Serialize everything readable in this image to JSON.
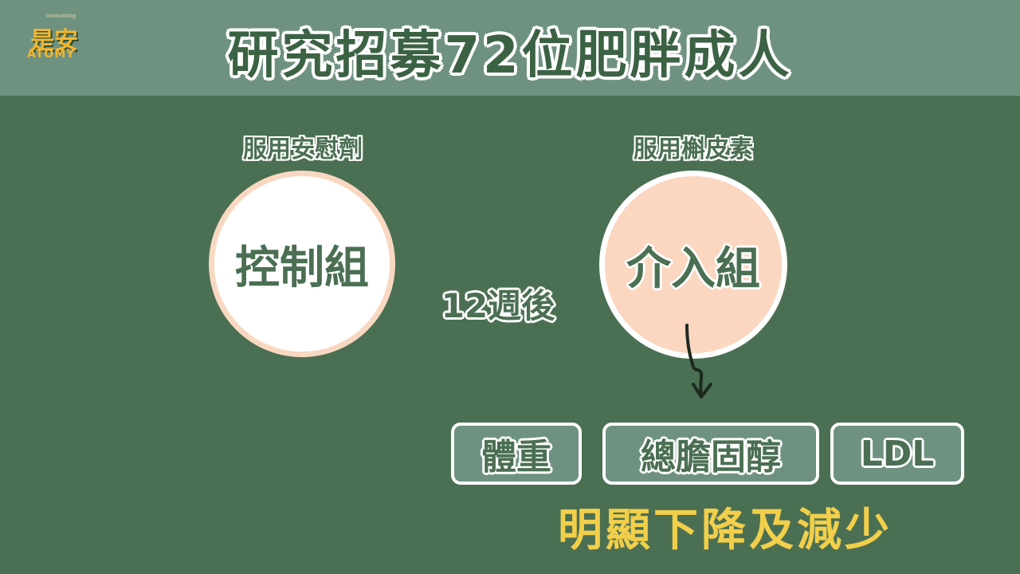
{
  "logo": {
    "top_text": "innovating",
    "cn": "是安",
    "en": "ATOMY"
  },
  "title": "研究招募72位肥胖成人",
  "groups": {
    "control": {
      "caption": "服用安慰劑",
      "label": "控制組",
      "fill": "#ffffff",
      "ring": "#f9d8c2"
    },
    "intervention": {
      "caption": "服用槲皮素",
      "label": "介入組",
      "fill": "#fbd6c0",
      "ring": "#ffffff"
    }
  },
  "duration": "12週後",
  "markers": [
    "體重",
    "總膽固醇",
    "LDL"
  ],
  "result": "明顯下降及減少",
  "colors": {
    "background": "#4b6f53",
    "header": "#6f9280",
    "accent_yellow": "#f2cf4a"
  }
}
